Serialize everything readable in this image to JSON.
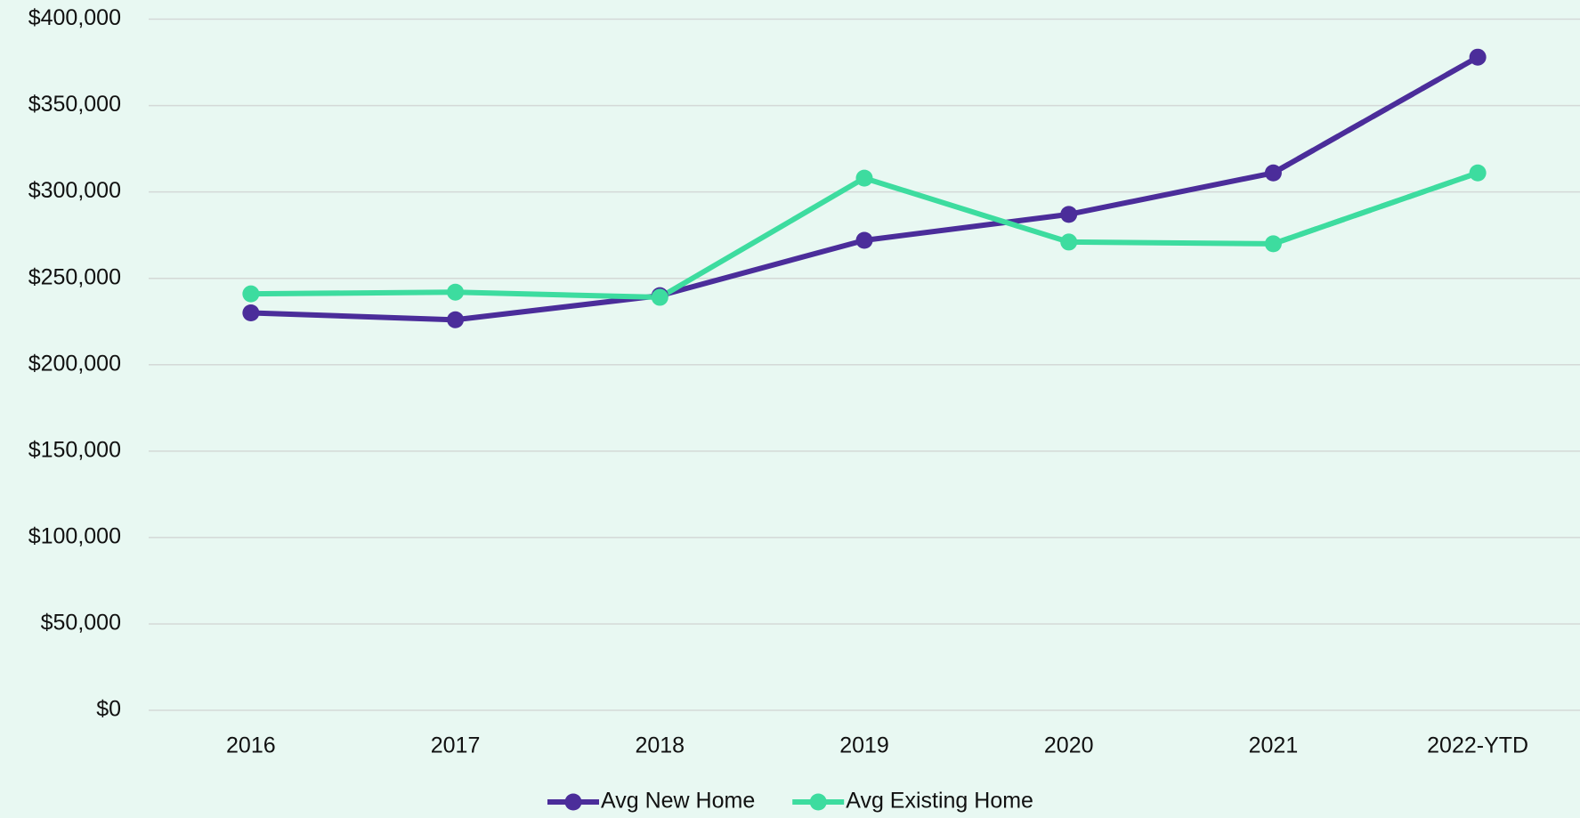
{
  "chart_data": {
    "type": "line",
    "categories": [
      "2016",
      "2017",
      "2018",
      "2019",
      "2020",
      "2021",
      "2022-YTD"
    ],
    "series": [
      {
        "name": "Avg New Home",
        "color": "#4b2d9a",
        "values": [
          230000,
          226000,
          240000,
          272000,
          287000,
          311000,
          378000
        ]
      },
      {
        "name": "Avg Existing Home",
        "color": "#3ddc9f",
        "values": [
          241000,
          242000,
          239000,
          308000,
          271000,
          270000,
          311000
        ]
      }
    ],
    "ylim": [
      0,
      400000
    ],
    "yticks": [
      {
        "value": 0,
        "label": "$0"
      },
      {
        "value": 50000,
        "label": "$50,000"
      },
      {
        "value": 100000,
        "label": "$100,000"
      },
      {
        "value": 150000,
        "label": "$150,000"
      },
      {
        "value": 200000,
        "label": "$200,000"
      },
      {
        "value": 250000,
        "label": "$250,000"
      },
      {
        "value": 300000,
        "label": "$300,000"
      },
      {
        "value": 350000,
        "label": "$350,000"
      },
      {
        "value": 400000,
        "label": "$400,000"
      }
    ],
    "grid": true,
    "dashed_last_segment": true,
    "legend": "bottom"
  }
}
